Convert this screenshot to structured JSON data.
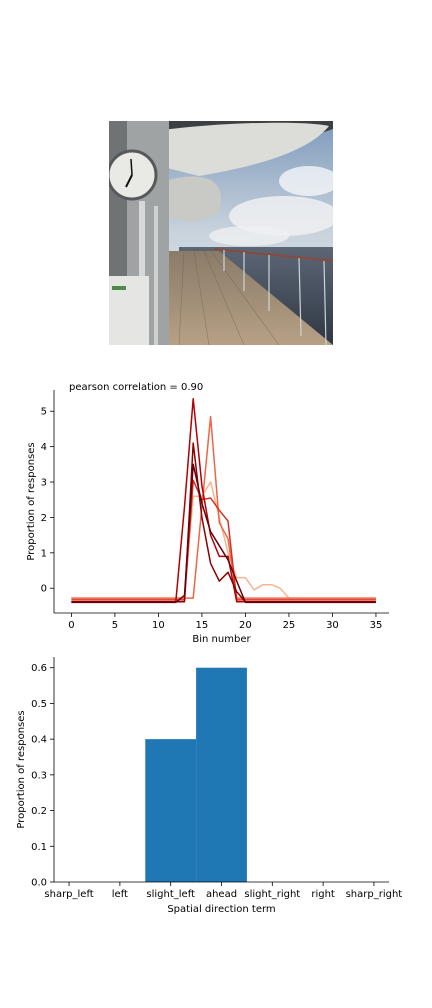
{
  "image": {
    "description_icon": "ship-deck-photo"
  },
  "chart_data": [
    {
      "type": "line",
      "title": "pearson correlation = 0.90",
      "xlabel": "Bin number",
      "ylabel": "Proportion of responses",
      "xlim": [
        -2,
        36.5
      ],
      "ylim": [
        -0.7,
        5.6
      ],
      "xticks": [
        0,
        5,
        10,
        15,
        20,
        25,
        30,
        35
      ],
      "yticks": [
        0,
        1,
        2,
        3,
        4,
        5
      ],
      "grid": false,
      "series": [
        {
          "color": "#f7b48e",
          "points": [
            [
              0,
              -0.28
            ],
            [
              12,
              -0.28
            ],
            [
              13,
              -0.28
            ],
            [
              14,
              2.6
            ],
            [
              15,
              2.6
            ],
            [
              16,
              3.0
            ],
            [
              17,
              2.0
            ],
            [
              18,
              1.0
            ],
            [
              19,
              0.3
            ],
            [
              20,
              0.3
            ],
            [
              21,
              -0.05
            ],
            [
              22,
              0.1
            ],
            [
              23,
              0.1
            ],
            [
              24,
              0.0
            ],
            [
              25,
              -0.28
            ],
            [
              35,
              -0.28
            ]
          ]
        },
        {
          "color": "#ef6548",
          "points": [
            [
              0,
              -0.28
            ],
            [
              13,
              -0.28
            ],
            [
              14,
              -0.28
            ],
            [
              15,
              2.3
            ],
            [
              16,
              4.85
            ],
            [
              17,
              1.85
            ],
            [
              18,
              1.4
            ],
            [
              19,
              -0.28
            ],
            [
              35,
              -0.28
            ]
          ]
        },
        {
          "color": "#d7301f",
          "points": [
            [
              0,
              -0.33
            ],
            [
              12,
              -0.33
            ],
            [
              13,
              -0.33
            ],
            [
              14,
              3.05
            ],
            [
              15,
              2.5
            ],
            [
              16,
              2.55
            ],
            [
              17,
              2.2
            ],
            [
              18,
              1.9
            ],
            [
              19,
              -0.33
            ],
            [
              35,
              -0.33
            ]
          ]
        },
        {
          "color": "#b30000",
          "points": [
            [
              0,
              -0.38
            ],
            [
              12,
              -0.38
            ],
            [
              13,
              2.3
            ],
            [
              14,
              5.35
            ],
            [
              15,
              2.9
            ],
            [
              16,
              1.5
            ],
            [
              17,
              0.9
            ],
            [
              18,
              0.9
            ],
            [
              19,
              -0.38
            ],
            [
              35,
              -0.38
            ]
          ]
        },
        {
          "color": "#8b0000",
          "points": [
            [
              0,
              -0.38
            ],
            [
              11,
              -0.38
            ],
            [
              12,
              -0.38
            ],
            [
              13,
              -0.38
            ],
            [
              14,
              4.1
            ],
            [
              15,
              2.0
            ],
            [
              16,
              0.7
            ],
            [
              17,
              0.2
            ],
            [
              18,
              0.45
            ],
            [
              19,
              -0.1
            ],
            [
              20,
              -0.38
            ],
            [
              35,
              -0.38
            ]
          ]
        },
        {
          "color": "#67000d",
          "points": [
            [
              0,
              -0.4
            ],
            [
              12,
              -0.4
            ],
            [
              13,
              -0.2
            ],
            [
              14,
              3.5
            ],
            [
              15,
              2.4
            ],
            [
              16,
              1.6
            ],
            [
              17,
              1.2
            ],
            [
              18,
              0.8
            ],
            [
              19,
              0.2
            ],
            [
              20,
              -0.4
            ],
            [
              35,
              -0.4
            ]
          ]
        }
      ]
    },
    {
      "type": "bar",
      "xlabel": "Spatial direction term",
      "ylabel": "Proportion of responses",
      "categories": [
        "sharp_left",
        "left",
        "slight_left",
        "ahead",
        "slight_right",
        "right",
        "sharp_right"
      ],
      "values": [
        0,
        0,
        0.4,
        0.6,
        0,
        0,
        0
      ],
      "ylim": [
        0,
        0.63
      ],
      "yticks": [
        "0.0",
        "0.1",
        "0.2",
        "0.3",
        "0.4",
        "0.5",
        "0.6"
      ],
      "bar_color": "#1f77b4",
      "grid": false
    }
  ]
}
